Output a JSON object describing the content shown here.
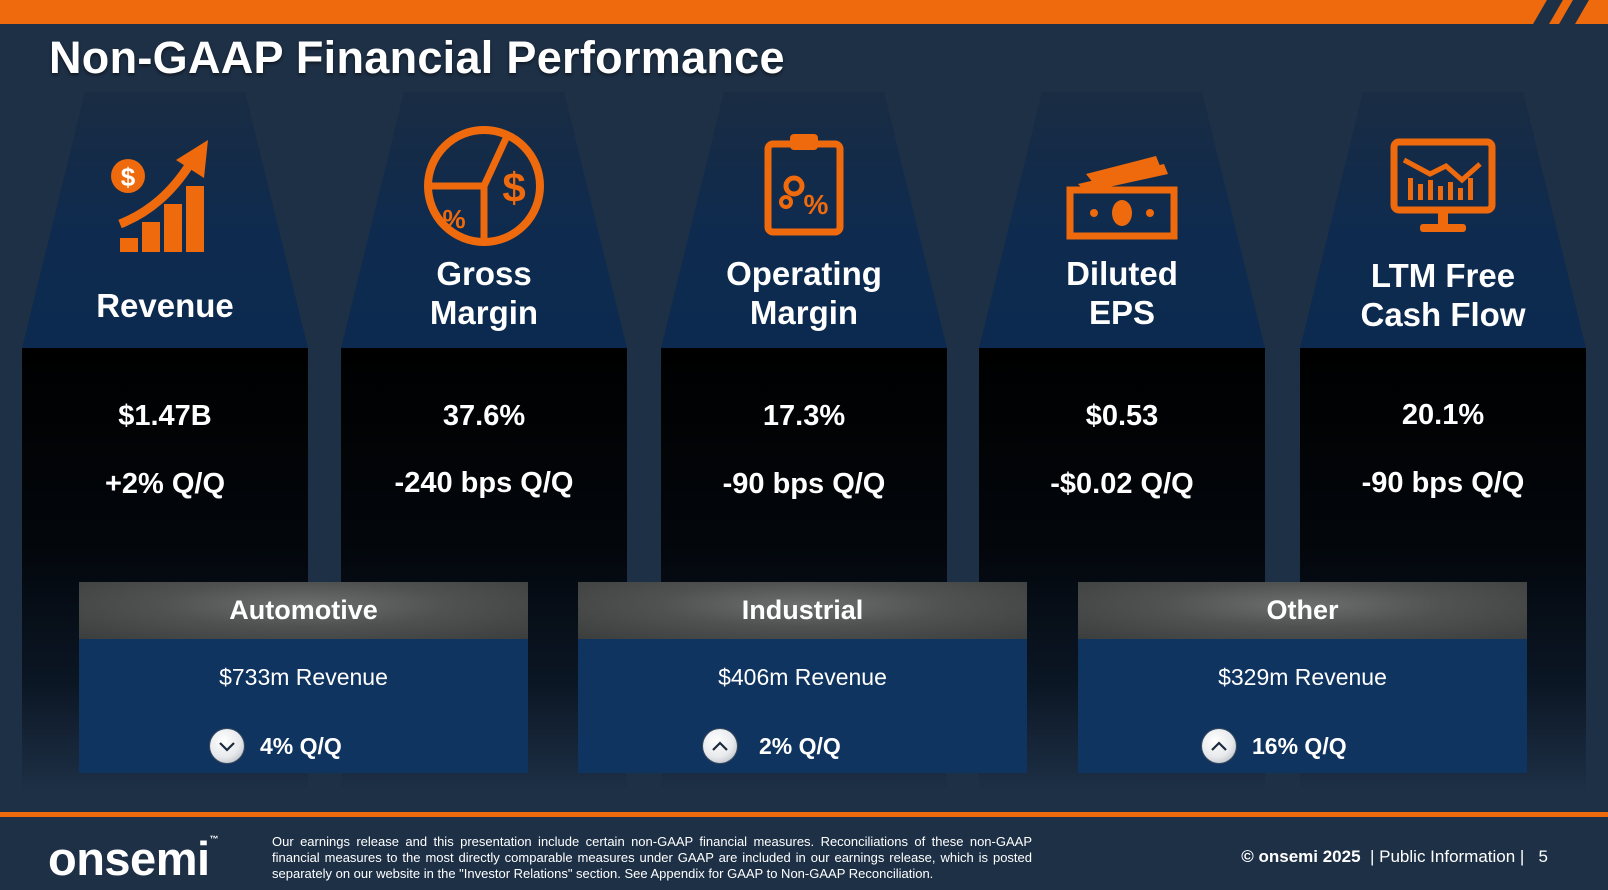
{
  "title": "Non-GAAP Financial Performance",
  "metrics": [
    {
      "icon": "revenue-growth-icon",
      "label_lines": [
        "Revenue",
        ""
      ],
      "value": "$1.47B",
      "change": "+2% Q/Q"
    },
    {
      "icon": "pie-chart-dollar-icon",
      "label_lines": [
        "Gross",
        "Margin"
      ],
      "value": "37.6%",
      "change": "-240 bps Q/Q"
    },
    {
      "icon": "clipboard-percent-icon",
      "label_lines": [
        "Operating",
        "Margin"
      ],
      "value": "17.3%",
      "change": "-90 bps Q/Q"
    },
    {
      "icon": "cash-bills-icon",
      "label_lines": [
        "Diluted",
        "EPS"
      ],
      "value": "$0.53",
      "change": "-$0.02 Q/Q"
    },
    {
      "icon": "monitor-chart-icon",
      "label_lines": [
        "LTM Free",
        "Cash Flow"
      ],
      "value": "20.1%",
      "change": "-90 bps Q/Q"
    }
  ],
  "segments": [
    {
      "name": "Automotive",
      "revenue": "$733m Revenue",
      "direction": "down",
      "change": "4% Q/Q"
    },
    {
      "name": "Industrial",
      "revenue": "$406m Revenue",
      "direction": "up",
      "change": "2% Q/Q"
    },
    {
      "name": "Other",
      "revenue": "$329m Revenue",
      "direction": "up",
      "change": "16% Q/Q"
    }
  ],
  "footer": {
    "logo": "onsemi",
    "logo_tm": "™",
    "disclaimer": "Our earnings release and this presentation include certain non-GAAP financial measures. Reconciliations of these non-GAAP financial measures to the most directly comparable measures under GAAP are included in our earnings release, which is posted separately on our website in the \"Investor Relations\" section. See Appendix for GAAP to Non-GAAP Reconciliation.",
    "copyright": "© onsemi 2025",
    "classification": "| Public Information |",
    "page_number": "5"
  },
  "colors": {
    "accent": "#ef6a0c",
    "background": "#1e3046",
    "segment_body": "#0f3460"
  }
}
